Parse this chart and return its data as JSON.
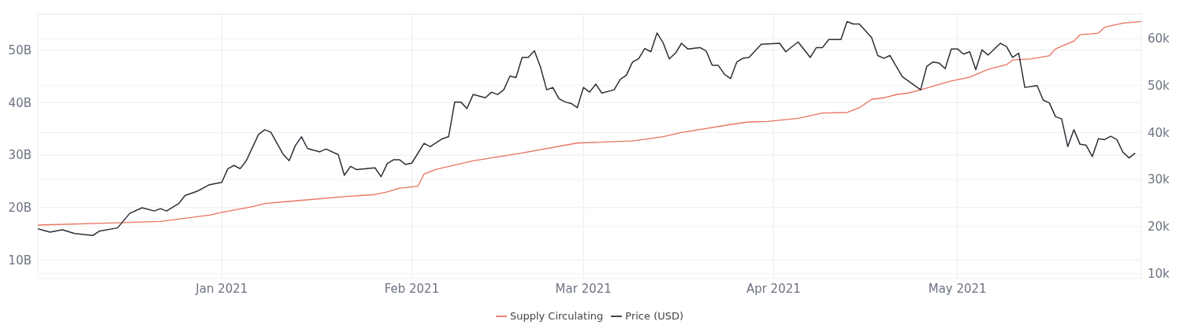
{
  "chart_data": {
    "type": "line",
    "xlim": [
      "2020-12-02",
      "2021-05-31"
    ],
    "xticks": [
      {
        "value": "2021-01-01",
        "label": "Jan 2021"
      },
      {
        "value": "2021-02-01",
        "label": "Feb 2021"
      },
      {
        "value": "2021-03-01",
        "label": "Mar 2021"
      },
      {
        "value": "2021-04-01",
        "label": "Apr 2021"
      },
      {
        "value": "2021-05-01",
        "label": "May 2021"
      }
    ],
    "ylim": [
      6.6,
      56.8
    ],
    "yticks": [
      {
        "value": 10,
        "label": "10B"
      },
      {
        "value": 20,
        "label": "20B"
      },
      {
        "value": 30,
        "label": "30B"
      },
      {
        "value": 40,
        "label": "40B"
      },
      {
        "value": 50,
        "label": "50B"
      }
    ],
    "y2lim": [
      9,
      65.2
    ],
    "y2ticks": [
      {
        "value": 10,
        "label": "10k"
      },
      {
        "value": 20,
        "label": "20k"
      },
      {
        "value": 30,
        "label": "30k"
      },
      {
        "value": 40,
        "label": "40k"
      },
      {
        "value": 50,
        "label": "50k"
      },
      {
        "value": 60,
        "label": "60k"
      }
    ],
    "grid": true,
    "legend": "bottom",
    "series": [
      {
        "name": "Supply Circulating",
        "color": "#e8735f",
        "x": [
          "2020-12-02",
          "2020-12-14",
          "2020-12-22",
          "2020-12-24",
          "2020-12-30",
          "2021-01-01",
          "2021-01-06",
          "2021-01-08",
          "2021-01-13",
          "2021-01-21",
          "2021-01-26",
          "2021-01-28",
          "2021-01-30",
          "2021-02-02",
          "2021-02-03",
          "2021-02-05",
          "2021-02-11",
          "2021-02-19",
          "2021-02-28",
          "2021-03-09",
          "2021-03-14",
          "2021-03-17",
          "2021-03-26",
          "2021-03-28",
          "2021-03-31",
          "2021-04-05",
          "2021-04-09",
          "2021-04-13",
          "2021-04-15",
          "2021-04-17",
          "2021-04-19",
          "2021-04-21",
          "2021-04-23",
          "2021-04-25",
          "2021-04-30",
          "2021-05-03",
          "2021-05-06",
          "2021-05-09",
          "2021-05-10",
          "2021-05-13",
          "2021-05-16",
          "2021-05-17",
          "2021-05-20",
          "2021-05-21",
          "2021-05-24",
          "2021-05-25",
          "2021-05-28",
          "2021-05-31"
        ],
        "values": [
          16.7,
          17.1,
          17.4,
          17.7,
          18.6,
          19.1,
          20.2,
          20.8,
          21.3,
          22.1,
          22.5,
          23.0,
          23.7,
          24.1,
          26.4,
          27.3,
          28.9,
          30.4,
          32.3,
          32.7,
          33.5,
          34.3,
          36.0,
          36.3,
          36.4,
          37.0,
          38.0,
          38.1,
          39.0,
          40.6,
          40.9,
          41.5,
          41.8,
          42.4,
          44.1,
          44.8,
          46.3,
          47.2,
          48.1,
          48.3,
          48.9,
          50.2,
          51.7,
          52.9,
          53.2,
          54.3,
          55.1,
          55.4
        ]
      },
      {
        "name": "Price (USD)",
        "color": "#2b2f36",
        "axis": "y2",
        "x": [
          "2020-12-02",
          "2020-12-04",
          "2020-12-06",
          "2020-12-08",
          "2020-12-11",
          "2020-12-12",
          "2020-12-15",
          "2020-12-17",
          "2020-12-19",
          "2020-12-21",
          "2020-12-22",
          "2020-12-23",
          "2020-12-25",
          "2020-12-26",
          "2020-12-28",
          "2020-12-29",
          "2020-12-30",
          "2021-01-01",
          "2021-01-02",
          "2021-01-03",
          "2021-01-04",
          "2021-01-05",
          "2021-01-07",
          "2021-01-08",
          "2021-01-09",
          "2021-01-11",
          "2021-01-12",
          "2021-01-13",
          "2021-01-14",
          "2021-01-15",
          "2021-01-17",
          "2021-01-18",
          "2021-01-20",
          "2021-01-21",
          "2021-01-22",
          "2021-01-23",
          "2021-01-26",
          "2021-01-27",
          "2021-01-28",
          "2021-01-29",
          "2021-01-30",
          "2021-01-31",
          "2021-02-01",
          "2021-02-03",
          "2021-02-04",
          "2021-02-06",
          "2021-02-07",
          "2021-02-08",
          "2021-02-09",
          "2021-02-10",
          "2021-02-11",
          "2021-02-13",
          "2021-02-14",
          "2021-02-15",
          "2021-02-16",
          "2021-02-17",
          "2021-02-18",
          "2021-02-19",
          "2021-02-20",
          "2021-02-21",
          "2021-02-22",
          "2021-02-23",
          "2021-02-24",
          "2021-02-25",
          "2021-02-26",
          "2021-02-27",
          "2021-02-28",
          "2021-03-01",
          "2021-03-02",
          "2021-03-03",
          "2021-03-04",
          "2021-03-06",
          "2021-03-07",
          "2021-03-08",
          "2021-03-09",
          "2021-03-10",
          "2021-03-11",
          "2021-03-12",
          "2021-03-13",
          "2021-03-14",
          "2021-03-15",
          "2021-03-16",
          "2021-03-17",
          "2021-03-18",
          "2021-03-20",
          "2021-03-21",
          "2021-03-22",
          "2021-03-23",
          "2021-03-24",
          "2021-03-25",
          "2021-03-26",
          "2021-03-27",
          "2021-03-28",
          "2021-03-30",
          "2021-04-02",
          "2021-04-03",
          "2021-04-05",
          "2021-04-07",
          "2021-04-08",
          "2021-04-09",
          "2021-04-10",
          "2021-04-12",
          "2021-04-13",
          "2021-04-14",
          "2021-04-15",
          "2021-04-17",
          "2021-04-18",
          "2021-04-19",
          "2021-04-20",
          "2021-04-22",
          "2021-04-25",
          "2021-04-26",
          "2021-04-27",
          "2021-04-28",
          "2021-04-29",
          "2021-04-30",
          "2021-05-01",
          "2021-05-02",
          "2021-05-03",
          "2021-05-04",
          "2021-05-05",
          "2021-05-06",
          "2021-05-08",
          "2021-05-09",
          "2021-05-10",
          "2021-05-11",
          "2021-05-12",
          "2021-05-14",
          "2021-05-15",
          "2021-05-16",
          "2021-05-17",
          "2021-05-18",
          "2021-05-19",
          "2021-05-20",
          "2021-05-21",
          "2021-05-22",
          "2021-05-23",
          "2021-05-24",
          "2021-05-25",
          "2021-05-26",
          "2021-05-27",
          "2021-05-28",
          "2021-05-29",
          "2021-05-30"
        ],
        "values": [
          19.5,
          18.8,
          19.3,
          18.5,
          18.1,
          19.0,
          19.7,
          22.8,
          24.0,
          23.3,
          23.8,
          23.3,
          24.9,
          26.6,
          27.5,
          28.2,
          28.9,
          29.4,
          32.3,
          33.0,
          32.3,
          34.0,
          39.6,
          40.6,
          40.1,
          35.4,
          34.0,
          37.2,
          39.1,
          36.6,
          35.9,
          36.5,
          35.3,
          30.9,
          32.8,
          32.1,
          32.5,
          30.6,
          33.4,
          34.2,
          34.2,
          33.2,
          33.5,
          37.7,
          37.0,
          38.7,
          39.1,
          46.5,
          46.5,
          45.1,
          48.1,
          47.4,
          48.6,
          48.1,
          49.1,
          52.0,
          51.7,
          56.0,
          56.0,
          57.4,
          53.9,
          49.1,
          49.6,
          47.2,
          46.5,
          46.2,
          45.3,
          49.6,
          48.6,
          50.3,
          48.4,
          49.1,
          51.3,
          52.2,
          55.0,
          55.7,
          57.9,
          57.2,
          61.2,
          59.1,
          55.7,
          56.9,
          59.0,
          57.8,
          58.1,
          57.4,
          54.3,
          54.3,
          52.4,
          51.5,
          55.0,
          55.8,
          56.0,
          58.8,
          59.0,
          57.2,
          59.3,
          56.0,
          58.1,
          58.1,
          59.8,
          59.8,
          63.6,
          63.1,
          63.1,
          60.2,
          56.4,
          55.8,
          56.4,
          51.9,
          49.1,
          54.1,
          55.0,
          54.8,
          53.6,
          57.8,
          57.8,
          56.7,
          57.2,
          53.4,
          57.6,
          56.5,
          59.0,
          58.3,
          56.0,
          56.9,
          49.6,
          50.0,
          46.9,
          46.3,
          43.4,
          42.9,
          37.0,
          40.6,
          37.5,
          37.3,
          34.9,
          38.7,
          38.5,
          39.2,
          38.5,
          35.8,
          34.6,
          35.6
        ]
      }
    ]
  }
}
